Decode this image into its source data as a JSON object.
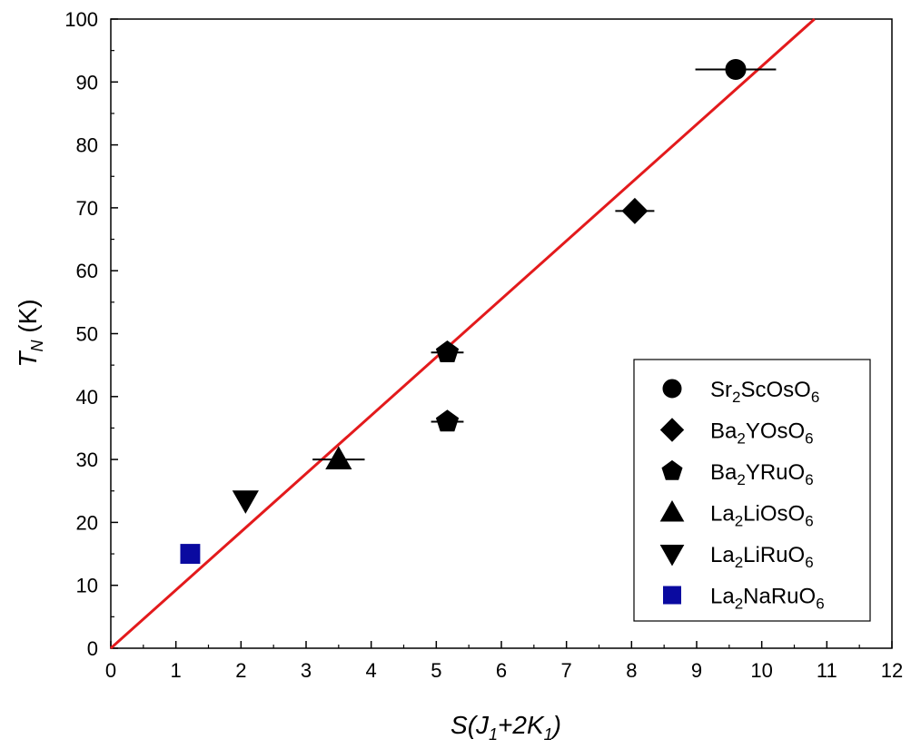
{
  "chart_data": {
    "type": "scatter",
    "xlabel": {
      "main": "S(J",
      "sub1": "1",
      "mid": "+2K",
      "sub2": "1",
      "end": ")"
    },
    "ylabel": {
      "main": "T",
      "sub": "N",
      "unit": " (K)"
    },
    "xlim": [
      0,
      12
    ],
    "ylim": [
      0,
      100
    ],
    "xticks": [
      0,
      1,
      2,
      3,
      4,
      5,
      6,
      7,
      8,
      9,
      10,
      11,
      12
    ],
    "yticks": [
      0,
      10,
      20,
      30,
      40,
      50,
      60,
      70,
      80,
      90,
      100
    ],
    "grid": false,
    "legend_position": "bottom-right",
    "fit_line": {
      "slope": 9.25,
      "intercept": 0,
      "color": "#e31a1c"
    },
    "series": [
      {
        "name": "Sr2ScOsO6",
        "label_parts": [
          "Sr",
          "2",
          "ScOsO",
          "6"
        ],
        "marker": "circle",
        "color": "#000000",
        "x": 9.6,
        "y": 92,
        "xerr": 0.62
      },
      {
        "name": "Ba2YOsO6",
        "label_parts": [
          "Ba",
          "2",
          "YOsO",
          "6"
        ],
        "marker": "diamond",
        "color": "#000000",
        "x": 8.05,
        "y": 69.5,
        "xerr": 0.3
      },
      {
        "name": "Ba2YRuO6",
        "label_parts": [
          "Ba",
          "2",
          "YRuO",
          "6"
        ],
        "marker": "pentagon",
        "color": "#000000",
        "points": [
          {
            "x": 5.17,
            "y": 47,
            "xerr": 0.25
          },
          {
            "x": 5.17,
            "y": 36,
            "xerr": 0.25
          }
        ]
      },
      {
        "name": "La2LiOsO6",
        "label_parts": [
          "La",
          "2",
          "LiOsO",
          "6"
        ],
        "marker": "triangle-up",
        "color": "#000000",
        "x": 3.5,
        "y": 30,
        "xerr": 0.4
      },
      {
        "name": "La2LiRuO6",
        "label_parts": [
          "La",
          "2",
          "LiRuO",
          "6"
        ],
        "marker": "triangle-down",
        "color": "#000000",
        "x": 2.07,
        "y": 23.5,
        "xerr": 0.08
      },
      {
        "name": "La2NaRuO6",
        "label_parts": [
          "La",
          "2",
          "NaRuO",
          "6"
        ],
        "marker": "square",
        "color": "#0a0aa0",
        "x": 1.22,
        "y": 15
      }
    ]
  }
}
